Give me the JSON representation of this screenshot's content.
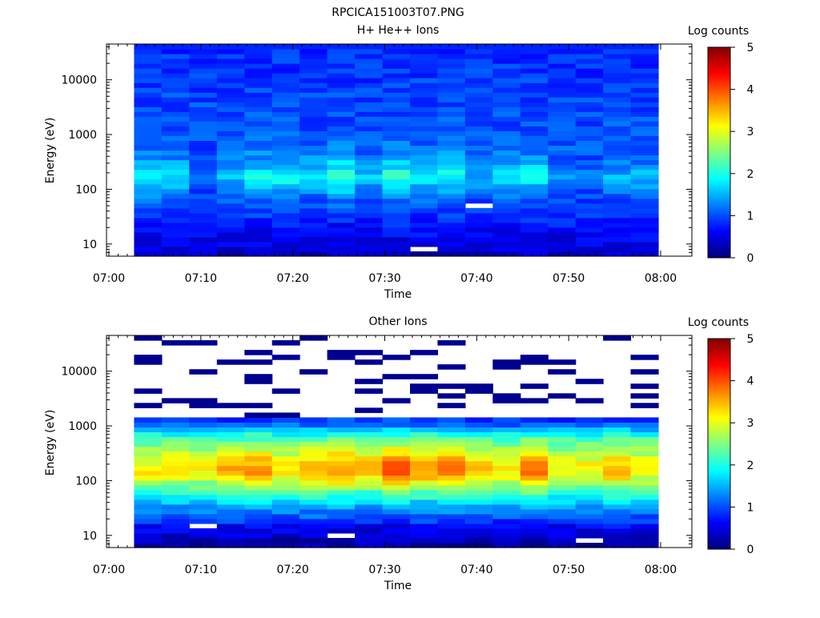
{
  "figure_title": "RPCICA151003T07.PNG",
  "colorscale": [
    "#00007a",
    "#0000ff",
    "#0080ff",
    "#00ffff",
    "#80ff80",
    "#ffff00",
    "#ff8000",
    "#ff0000",
    "#800000"
  ],
  "chart_data": [
    {
      "type": "heatmap",
      "title": "H+ He++ Ions",
      "xlabel": "Time",
      "ylabel": "Energy (eV)",
      "yscale": "log",
      "ylim": [
        6,
        45000
      ],
      "x_ticks": [
        "07:00",
        "07:10",
        "07:20",
        "07:30",
        "07:40",
        "07:50",
        "08:00"
      ],
      "y_ticks": [
        "10",
        "100",
        "1000",
        "10000"
      ],
      "x_data_range": [
        "07:03",
        "08:00"
      ],
      "colorbar": {
        "label": "Log counts",
        "range": [
          0,
          5
        ],
        "ticks": [
          "0",
          "1",
          "2",
          "3",
          "4",
          "5"
        ]
      },
      "time_columns": [
        "07:03",
        "07:06",
        "07:09",
        "07:12",
        "07:15",
        "07:18",
        "07:21",
        "07:24",
        "07:27",
        "07:30",
        "07:33",
        "07:36",
        "07:39",
        "07:42",
        "07:45",
        "07:48",
        "07:51",
        "07:54",
        "07:57"
      ],
      "energy_profile": {
        "energy_ev": [
          7,
          10,
          15,
          22,
          30,
          50,
          80,
          120,
          180,
          300,
          500,
          1000,
          2000,
          5000,
          10000,
          20000,
          40000
        ],
        "log_counts": [
          0.35,
          0.5,
          0.6,
          0.7,
          0.8,
          1.0,
          1.2,
          1.5,
          1.8,
          1.4,
          1.2,
          1.05,
          1.0,
          0.95,
          0.9,
          0.85,
          0.8
        ]
      },
      "column_peak_log_counts": [
        1.9,
        1.8,
        1.2,
        1.6,
        1.9,
        2.0,
        1.8,
        2.2,
        1.6,
        2.1,
        1.8,
        2.0,
        1.5,
        1.8,
        1.9,
        1.4,
        1.3,
        1.5,
        1.6
      ],
      "empty_bins": [
        {
          "time": "07:33",
          "energy_ev": 8
        },
        {
          "time": "07:39",
          "energy_ev": 50
        }
      ]
    },
    {
      "type": "heatmap",
      "title": "Other Ions",
      "xlabel": "Time",
      "ylabel": "Energy (eV)",
      "yscale": "log",
      "ylim": [
        6,
        45000
      ],
      "x_ticks": [
        "07:00",
        "07:10",
        "07:20",
        "07:30",
        "07:40",
        "07:50",
        "08:00"
      ],
      "y_ticks": [
        "10",
        "100",
        "1000",
        "10000"
      ],
      "x_data_range": [
        "07:03",
        "08:00"
      ],
      "colorbar": {
        "label": "Log counts",
        "range": [
          0,
          5
        ],
        "ticks": [
          "0",
          "1",
          "2",
          "3",
          "4",
          "5"
        ]
      },
      "time_columns": [
        "07:03",
        "07:06",
        "07:09",
        "07:12",
        "07:15",
        "07:18",
        "07:21",
        "07:24",
        "07:27",
        "07:30",
        "07:33",
        "07:36",
        "07:39",
        "07:42",
        "07:45",
        "07:48",
        "07:51",
        "07:54",
        "07:57"
      ],
      "energy_profile": {
        "energy_ev": [
          7,
          10,
          15,
          20,
          30,
          45,
          60,
          80,
          100,
          150,
          200,
          300,
          500,
          800,
          1000,
          1300
        ],
        "log_counts": [
          0.2,
          0.4,
          0.6,
          1.0,
          1.3,
          1.8,
          2.2,
          2.6,
          3.0,
          3.5,
          3.4,
          3.0,
          2.5,
          1.8,
          1.2,
          0.9
        ]
      },
      "column_peak_log_counts": [
        3.2,
        3.3,
        3.1,
        3.6,
        3.7,
        3.3,
        3.6,
        3.8,
        3.5,
        4.0,
        3.7,
        3.9,
        3.4,
        3.3,
        3.9,
        3.1,
        3.2,
        3.6,
        3.2
      ],
      "sparse_high_energy_counts_log": 0.1,
      "empty_bins": [
        {
          "time": "07:09",
          "energy_ev": 15
        },
        {
          "time": "07:24",
          "energy_ev": 10
        },
        {
          "time": "07:51",
          "energy_ev": 8
        }
      ]
    }
  ]
}
